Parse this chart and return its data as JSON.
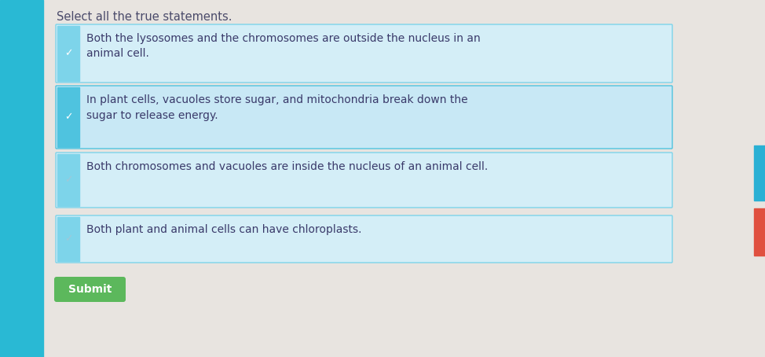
{
  "title": "Select all the true statements.",
  "title_fontsize": 10.5,
  "title_color": "#4a4a6a",
  "page_bg": "#e8e4e0",
  "options": [
    {
      "text": "Both the lysosomes and the chromosomes are outside the nucleus in an\nanimal cell.",
      "checked": true,
      "box_bg": "#d4eef7",
      "box_border": "#7dd4ea",
      "left_bar_color": "#7dd4ea",
      "check_color": "#ffffff",
      "text_color": "#3a3a6a"
    },
    {
      "text": "In plant cells, vacuoles store sugar, and mitochondria break down the\nsugar to release energy.",
      "checked": true,
      "box_bg": "#c8e8f5",
      "box_border": "#4fc3df",
      "left_bar_color": "#4fc3df",
      "check_color": "#ffffff",
      "text_color": "#3a3a6a"
    },
    {
      "text": "Both chromosomes and vacuoles are inside the nucleus of an animal cell.",
      "checked": true,
      "box_bg": "#d4eef7",
      "box_border": "#7dd4ea",
      "left_bar_color": "#7dd4ea",
      "check_color": "#a0c8d8",
      "text_color": "#3a3a6a"
    },
    {
      "text": "Both plant and animal cells can have chloroplasts.",
      "checked": true,
      "box_bg": "#d4eef7",
      "box_border": "#7dd4ea",
      "left_bar_color": "#7dd4ea",
      "check_color": "#a0c8d8",
      "text_color": "#3a3a6a"
    }
  ],
  "submit_text": "Submit",
  "submit_bg": "#5cb85c",
  "submit_text_color": "#ffffff",
  "submit_fontsize": 10,
  "text_fontsize": 10,
  "left_sidebar_color": "#29b9d4",
  "right_bar1_color": "#2ab0d4",
  "right_bar2_color": "#e05040"
}
